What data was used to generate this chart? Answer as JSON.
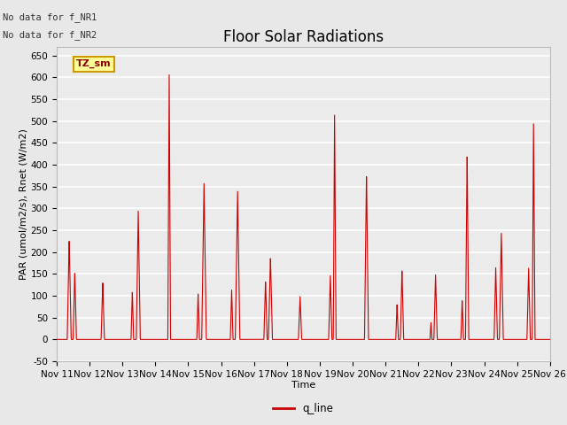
{
  "title": "Floor Solar Radiations",
  "xlabel": "Time",
  "ylabel": "PAR (umol/m2/s), Rnet (W/m2)",
  "ylim": [
    -50,
    670
  ],
  "yticks": [
    -50,
    0,
    50,
    100,
    150,
    200,
    250,
    300,
    350,
    400,
    450,
    500,
    550,
    600,
    650
  ],
  "line_color": "#cc0000",
  "line_label": "q_line",
  "annotation_texts": [
    "No data for f_NR1",
    "No data for f_NR2"
  ],
  "legend_label": "TZ_sm",
  "legend_box_color": "#ffff99",
  "legend_box_edge_color": "#cc9900",
  "background_color": "#e8e8e8",
  "plot_bg_color": "#ebebeb",
  "grid_color": "#ffffff",
  "n_days": 15,
  "day_start": 11,
  "title_fontsize": 12,
  "axis_label_fontsize": 8,
  "tick_fontsize": 7.5
}
